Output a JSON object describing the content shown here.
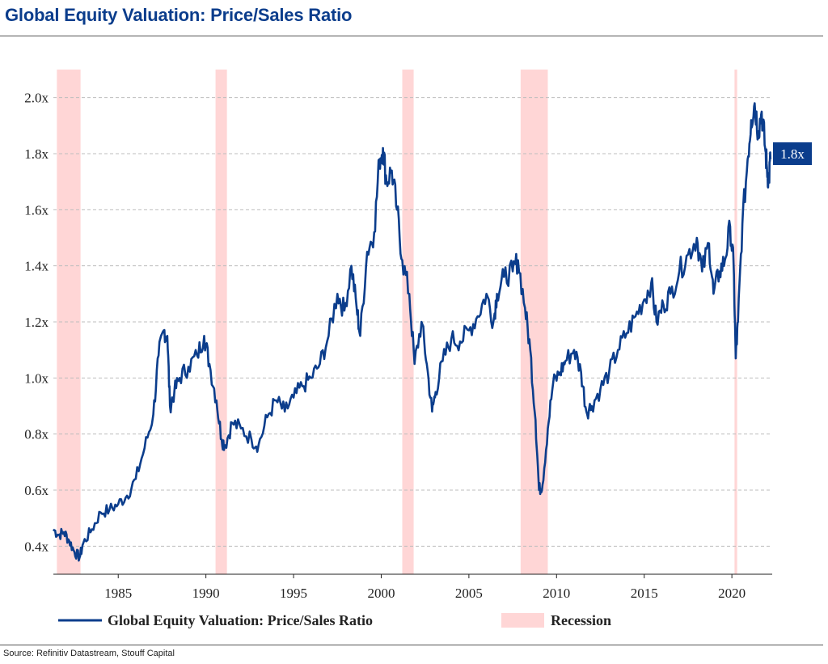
{
  "page": {
    "title": "Global Equity Valuation: Price/Sales Ratio",
    "source": "Source: Refinitiv Datastream, Stouff Capital"
  },
  "chart_data": {
    "type": "line",
    "title": "Global Equity Valuation: Price/Sales Ratio",
    "xlabel": "",
    "ylabel": "",
    "xlim": [
      1981.3,
      2022.3
    ],
    "ylim": [
      0.3,
      2.1
    ],
    "grid": true,
    "legend_position": "bottom",
    "y_ticks": [
      0.4,
      0.6,
      0.8,
      1.0,
      1.2,
      1.4,
      1.6,
      1.8,
      2.0
    ],
    "y_tick_labels": [
      "0.4x",
      "0.6x",
      "0.8x",
      "1.0x",
      "1.2x",
      "1.4x",
      "1.6x",
      "1.8x",
      "2.0x"
    ],
    "x_ticks": [
      1985,
      1990,
      1995,
      2000,
      2005,
      2010,
      2015,
      2020
    ],
    "x_tick_labels": [
      "1985",
      "1990",
      "1995",
      "2000",
      "2005",
      "2010",
      "2015",
      "2020"
    ],
    "colors": {
      "line": "#0b3d8c",
      "recession": "#ffd6d6",
      "grid": "#bdbdbd",
      "label_bg": "#0b3d8c"
    },
    "last_value_label": "1.8x",
    "recessions": [
      [
        1981.5,
        1982.85
      ],
      [
        1990.55,
        1991.2
      ],
      [
        2001.2,
        2001.85
      ],
      [
        2007.95,
        2009.5
      ],
      [
        2020.15,
        2020.3
      ]
    ],
    "series": [
      {
        "name": "Global Equity Valuation: Price/Sales  Ratio",
        "x": [
          1981.3,
          1981.6,
          1981.9,
          1982.2,
          1982.5,
          1982.8,
          1983.0,
          1983.5,
          1984.0,
          1984.5,
          1985.0,
          1985.5,
          1986.0,
          1986.5,
          1987.0,
          1987.3,
          1987.6,
          1987.8,
          1987.95,
          1988.2,
          1988.5,
          1989.0,
          1989.5,
          1989.9,
          1990.2,
          1990.6,
          1990.9,
          1991.1,
          1991.5,
          1992.0,
          1992.6,
          1993.0,
          1993.5,
          1994.0,
          1994.5,
          1995.0,
          1995.5,
          1996.0,
          1996.5,
          1997.0,
          1997.5,
          1997.9,
          1998.3,
          1998.6,
          1998.8,
          1999.2,
          1999.6,
          1999.9,
          2000.1,
          2000.3,
          2000.6,
          2000.9,
          2001.2,
          2001.6,
          2001.9,
          2002.3,
          2002.6,
          2002.9,
          2003.1,
          2003.5,
          2004.0,
          2004.5,
          2005.0,
          2005.5,
          2006.0,
          2006.4,
          2006.6,
          2007.0,
          2007.5,
          2007.8,
          2008.2,
          2008.5,
          2008.8,
          2009.0,
          2009.2,
          2009.5,
          2009.8,
          2010.2,
          2010.5,
          2011.0,
          2011.4,
          2011.7,
          2012.0,
          2012.5,
          2013.0,
          2013.5,
          2014.0,
          2014.5,
          2015.0,
          2015.4,
          2015.7,
          2016.1,
          2016.5,
          2017.0,
          2017.5,
          2018.0,
          2018.3,
          2018.7,
          2018.95,
          2019.3,
          2019.6,
          2019.9,
          2020.1,
          2020.22,
          2020.35,
          2020.6,
          2020.9,
          2021.1,
          2021.3,
          2021.5,
          2021.7,
          2021.9,
          2022.0,
          2022.1,
          2022.2
        ],
        "values": [
          0.46,
          0.44,
          0.45,
          0.42,
          0.38,
          0.36,
          0.41,
          0.46,
          0.52,
          0.53,
          0.55,
          0.58,
          0.64,
          0.75,
          0.87,
          1.08,
          1.17,
          1.15,
          0.9,
          0.95,
          1.0,
          1.04,
          1.08,
          1.15,
          1.05,
          0.92,
          0.78,
          0.76,
          0.84,
          0.82,
          0.78,
          0.76,
          0.86,
          0.92,
          0.88,
          0.93,
          0.97,
          1.0,
          1.05,
          1.15,
          1.3,
          1.24,
          1.4,
          1.25,
          1.15,
          1.45,
          1.52,
          1.78,
          1.82,
          1.7,
          1.74,
          1.6,
          1.42,
          1.3,
          1.05,
          1.2,
          1.05,
          0.88,
          0.95,
          1.06,
          1.14,
          1.13,
          1.17,
          1.22,
          1.3,
          1.2,
          1.3,
          1.36,
          1.38,
          1.42,
          1.25,
          1.1,
          0.85,
          0.6,
          0.62,
          0.82,
          0.98,
          1.02,
          1.06,
          1.1,
          1.02,
          0.88,
          0.9,
          0.96,
          1.02,
          1.1,
          1.16,
          1.22,
          1.28,
          1.34,
          1.2,
          1.26,
          1.3,
          1.38,
          1.44,
          1.5,
          1.38,
          1.48,
          1.3,
          1.38,
          1.42,
          1.54,
          1.4,
          1.07,
          1.2,
          1.55,
          1.78,
          1.92,
          1.98,
          1.88,
          1.95,
          1.82,
          1.75,
          1.7,
          1.78
        ]
      }
    ],
    "legend": [
      {
        "label": "Global Equity Valuation: Price/Sales  Ratio",
        "kind": "line"
      },
      {
        "label": "Recession",
        "kind": "swatch"
      }
    ]
  }
}
